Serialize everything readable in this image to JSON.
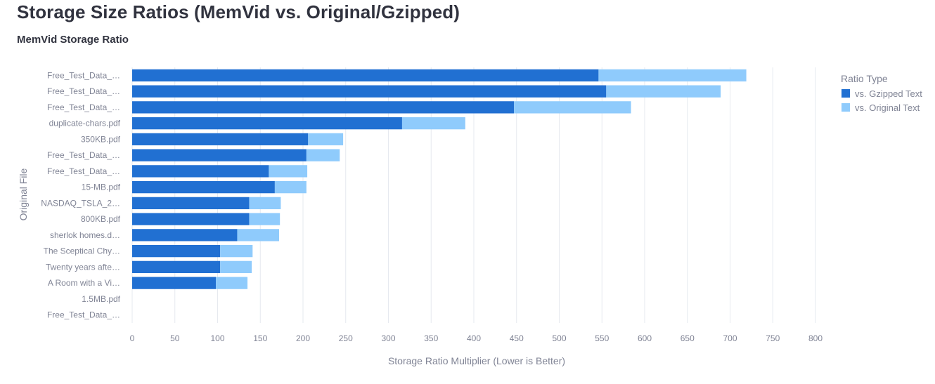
{
  "page": {
    "title": "Storage Size Ratios (MemVid vs. Original/Gzipped)"
  },
  "chart_data": {
    "type": "bar",
    "orientation": "horizontal",
    "stacked": true,
    "title": "MemVid Storage Ratio",
    "xlabel": "Storage Ratio Multiplier (Lower is Better)",
    "ylabel": "Original File",
    "xlim": [
      0,
      800
    ],
    "xticks": [
      0,
      50,
      100,
      150,
      200,
      250,
      300,
      350,
      400,
      450,
      500,
      550,
      600,
      650,
      700,
      750,
      800
    ],
    "grid": true,
    "legend": {
      "title": "Ratio Type",
      "position": "top-right"
    },
    "categories": [
      "Free_Test_Data_…",
      "Free_Test_Data_…",
      "Free_Test_Data_…",
      "duplicate-chars.pdf",
      "350KB.pdf",
      "Free_Test_Data_…",
      "Free_Test_Data_…",
      "15-MB.pdf",
      "NASDAQ_TSLA_2…",
      "800KB.pdf",
      "sherlok homes.d…",
      "The Sceptical Chy…",
      "Twenty years afte…",
      "A Room with a Vi…",
      "1.5MB.pdf",
      "Free_Test_Data_…"
    ],
    "series": [
      {
        "name": "vs. Gzipped Text",
        "color": "#2170d2",
        "values": [
          546,
          555,
          447,
          316,
          206,
          204,
          160,
          167,
          137,
          137,
          123,
          103,
          103,
          98,
          0,
          0
        ]
      },
      {
        "name": "vs. Original Text",
        "color": "#8fcbfc",
        "values": [
          173,
          134,
          137,
          74,
          41,
          39,
          45,
          37,
          37,
          36,
          49,
          38,
          37,
          37,
          0,
          0
        ]
      }
    ]
  }
}
